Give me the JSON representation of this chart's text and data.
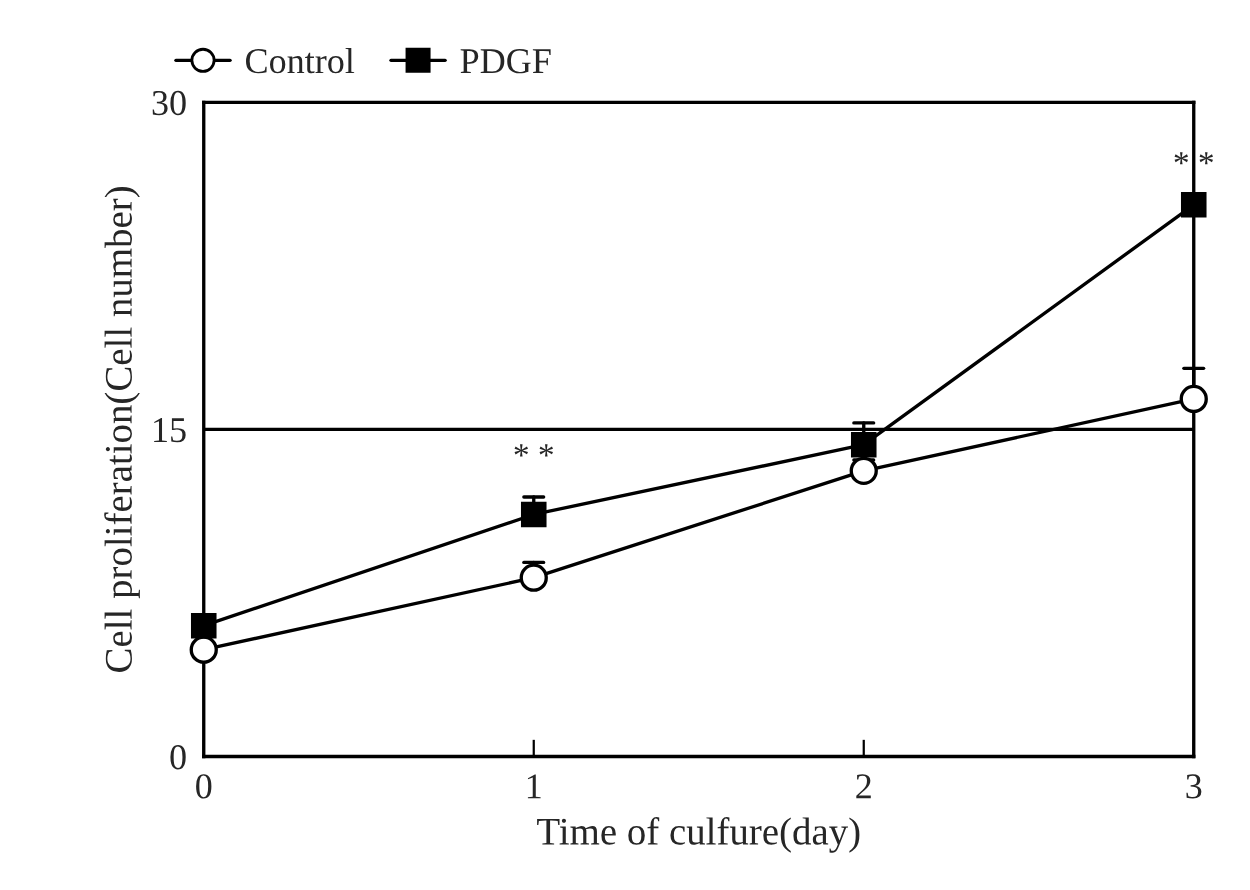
{
  "chart_data": {
    "type": "line",
    "xlabel": "Time of culfure(day)",
    "ylabel": "Cell proliferation(Cell number)",
    "x": [
      0,
      1,
      2,
      3
    ],
    "xlim": [
      0,
      3
    ],
    "xticks": [
      0,
      1,
      2,
      3
    ],
    "ylim": [
      0,
      30
    ],
    "yticks": [
      0,
      15,
      30
    ],
    "series": [
      {
        "name": "Control",
        "color": "#000000",
        "marker": "circle",
        "values": [
          4.9,
          8.2,
          13.1,
          16.4
        ],
        "errors": [
          null,
          [
            8.2,
            8.9
          ],
          [
            13.1,
            13.6
          ],
          [
            16.4,
            17.8
          ]
        ]
      },
      {
        "name": "PDGF",
        "color": "#000000",
        "marker": "square",
        "values": [
          6.0,
          11.1,
          14.3,
          25.3
        ],
        "errors": [
          null,
          [
            11.1,
            11.9
          ],
          [
            14.3,
            15.3
          ],
          null
        ]
      }
    ],
    "ref_lines": [
      {
        "axis": "y",
        "value": 15,
        "color": "#000000"
      }
    ],
    "annotations": [
      {
        "text": "* *",
        "x": 1,
        "y": 11.9
      },
      {
        "text": "* *",
        "x": 3,
        "y": 25.3
      }
    ],
    "legend": "top left",
    "grid": false
  }
}
